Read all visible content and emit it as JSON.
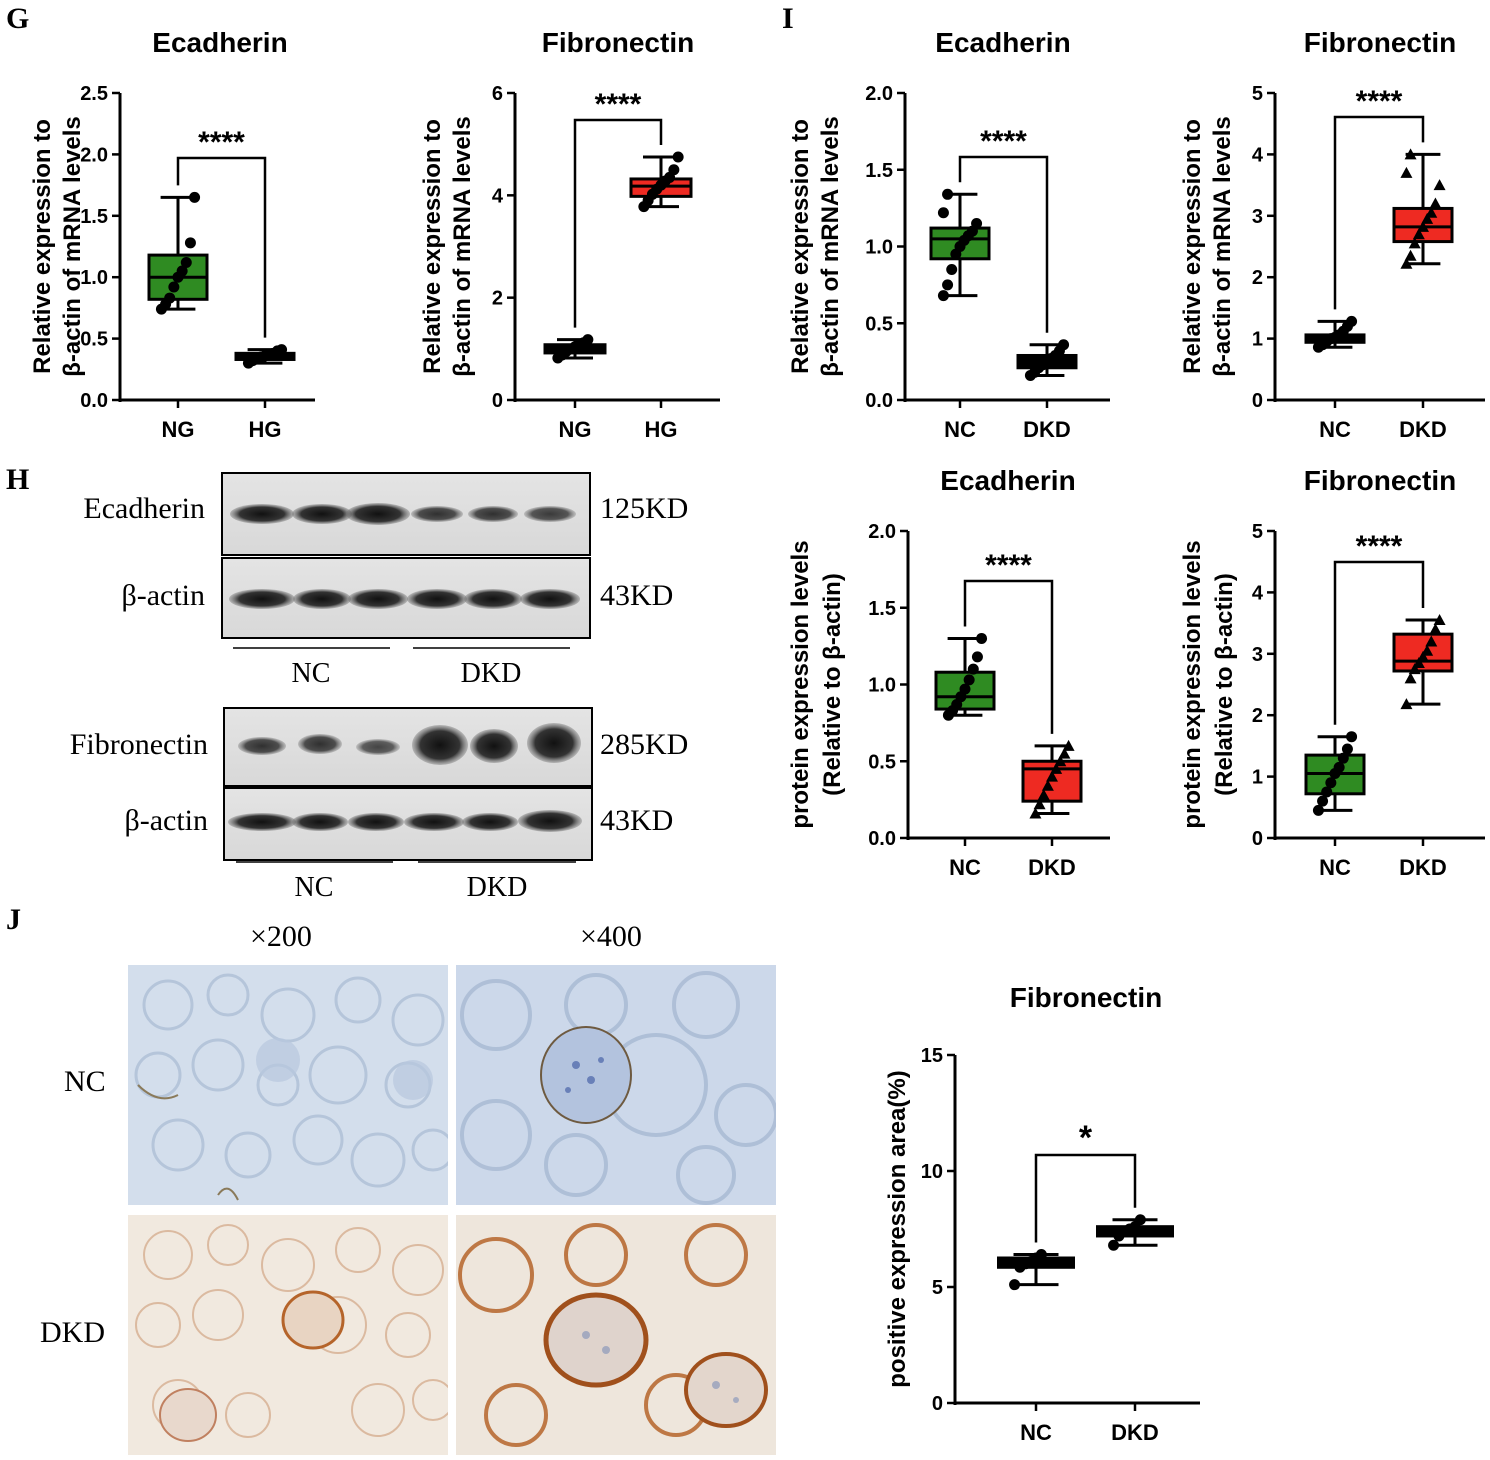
{
  "panels": {
    "G": "G",
    "H": "H",
    "I": "I",
    "J": "J"
  },
  "blot": {
    "top": {
      "row1": "Ecadherin",
      "kd1": "125KD",
      "row2": "β-actin",
      "kd2": "43KD",
      "group_left": "NC",
      "group_right": "DKD"
    },
    "bottom": {
      "row1": "Fibronectin",
      "kd1": "285KD",
      "row2": "β-actin",
      "kd2": "43KD",
      "group_left": "NC",
      "group_right": "DKD"
    }
  },
  "ihc": {
    "col1": "×200",
    "col2": "×400",
    "row1": "NC",
    "row2": "DKD"
  },
  "colors": {
    "green": "#2f8b22",
    "red": "#ee2a22",
    "black": "#000000",
    "ihc_nc_bg": "#cfdbea",
    "ihc_dkd_bg": "#f1e8dc",
    "ihc_stain": "#b5642a"
  },
  "chart_data": [
    {
      "type": "box",
      "title": "Ecadherin",
      "ylabel": [
        "Relative expression to",
        "β-actin of mRNA levels"
      ],
      "categories": [
        "NG",
        "HG"
      ],
      "ylim": [
        0,
        2.5
      ],
      "yticks": [
        "0.0",
        "0.5",
        "1.0",
        "1.5",
        "2.0",
        "2.5"
      ],
      "tick_values": [
        0,
        0.5,
        1,
        1.5,
        2,
        2.5
      ],
      "significance": "****",
      "fills": [
        "#2f8b22",
        "#000000"
      ],
      "boxes": [
        {
          "min": 0.74,
          "q1": 0.82,
          "median": 1.0,
          "q3": 1.18,
          "max": 1.65
        },
        {
          "min": 0.3,
          "q1": 0.33,
          "median": 0.36,
          "q3": 0.38,
          "max": 0.41
        }
      ],
      "points": [
        [
          0.74,
          0.78,
          0.83,
          0.92,
          1.0,
          1.05,
          1.12,
          1.28,
          1.65
        ],
        [
          0.3,
          0.32,
          0.34,
          0.35,
          0.36,
          0.37,
          0.38,
          0.4,
          0.41
        ]
      ]
    },
    {
      "type": "box",
      "title": "Fibronectin",
      "ylabel": [
        "Relative expression to",
        "β-actin of mRNA levels"
      ],
      "categories": [
        "NG",
        "HG"
      ],
      "ylim": [
        0,
        6
      ],
      "yticks": [
        "0",
        "2",
        "4",
        "6"
      ],
      "tick_values": [
        0,
        2,
        4,
        6
      ],
      "significance": "****",
      "fills": [
        "#000000",
        "#ee2a22"
      ],
      "boxes": [
        {
          "min": 0.82,
          "q1": 0.92,
          "median": 1.0,
          "q3": 1.08,
          "max": 1.18
        },
        {
          "min": 3.78,
          "q1": 3.98,
          "median": 4.18,
          "q3": 4.32,
          "max": 4.75
        }
      ],
      "points": [
        [
          0.82,
          0.88,
          0.95,
          1.0,
          1.04,
          1.08,
          1.12,
          1.18
        ],
        [
          3.78,
          3.9,
          4.02,
          4.12,
          4.2,
          4.28,
          4.35,
          4.5,
          4.75
        ]
      ]
    },
    {
      "type": "box",
      "title": "Ecadherin",
      "ylabel": [
        "Relative expression to",
        "β-actin of mRNA levels"
      ],
      "categories": [
        "NC",
        "DKD"
      ],
      "ylim": [
        0,
        2.0
      ],
      "yticks": [
        "0.0",
        "0.5",
        "1.0",
        "1.5",
        "2.0"
      ],
      "tick_values": [
        0,
        0.5,
        1,
        1.5,
        2
      ],
      "significance": "****",
      "fills": [
        "#2f8b22",
        "#000000"
      ],
      "boxes": [
        {
          "min": 0.68,
          "q1": 0.92,
          "median": 1.05,
          "q3": 1.12,
          "max": 1.34
        },
        {
          "min": 0.16,
          "q1": 0.21,
          "median": 0.25,
          "q3": 0.29,
          "max": 0.36
        }
      ],
      "points": [
        [
          0.68,
          0.75,
          0.85,
          0.95,
          1.0,
          1.04,
          1.07,
          1.1,
          1.15,
          1.22,
          1.34
        ],
        [
          0.16,
          0.18,
          0.21,
          0.23,
          0.25,
          0.27,
          0.29,
          0.32,
          0.36
        ]
      ]
    },
    {
      "type": "box",
      "title": "Fibronectin",
      "ylabel": [
        "Relative expression to",
        "β-actin of mRNA levels"
      ],
      "categories": [
        "NC",
        "DKD"
      ],
      "ylim": [
        0,
        5
      ],
      "yticks": [
        "0",
        "1",
        "2",
        "3",
        "4",
        "5"
      ],
      "tick_values": [
        0,
        1,
        2,
        3,
        4,
        5
      ],
      "significance": "****",
      "fills": [
        "#000000",
        "#ee2a22"
      ],
      "boxes": [
        {
          "min": 0.86,
          "q1": 0.94,
          "median": 1.0,
          "q3": 1.06,
          "max": 1.28
        },
        {
          "min": 2.22,
          "q1": 2.58,
          "median": 2.82,
          "q3": 3.12,
          "max": 4.0
        }
      ],
      "points": [
        [
          0.86,
          0.9,
          0.95,
          1.0,
          1.02,
          1.06,
          1.12,
          1.2,
          1.28
        ],
        [
          2.22,
          2.35,
          2.55,
          2.7,
          2.82,
          2.95,
          3.05,
          3.2,
          3.5,
          3.7,
          4.0
        ]
      ]
    },
    {
      "type": "box",
      "title": "Ecadherin",
      "ylabel": [
        "protein expression levels",
        "(Relative to β-actin)"
      ],
      "categories": [
        "NC",
        "DKD"
      ],
      "ylim": [
        0,
        2.0
      ],
      "yticks": [
        "0.0",
        "0.5",
        "1.0",
        "1.5",
        "2.0"
      ],
      "tick_values": [
        0,
        0.5,
        1,
        1.5,
        2
      ],
      "significance": "****",
      "fills": [
        "#2f8b22",
        "#ee2a22"
      ],
      "boxes": [
        {
          "min": 0.8,
          "q1": 0.84,
          "median": 0.92,
          "q3": 1.08,
          "max": 1.3
        },
        {
          "min": 0.16,
          "q1": 0.24,
          "median": 0.45,
          "q3": 0.5,
          "max": 0.6
        }
      ],
      "points": [
        [
          0.8,
          0.83,
          0.87,
          0.92,
          0.97,
          1.03,
          1.1,
          1.18,
          1.3
        ],
        [
          0.16,
          0.22,
          0.28,
          0.34,
          0.4,
          0.45,
          0.5,
          0.55,
          0.6
        ]
      ]
    },
    {
      "type": "box",
      "title": "Fibronectin",
      "ylabel": [
        "protein expression levels",
        "(Relative to β-actin)"
      ],
      "categories": [
        "NC",
        "DKD"
      ],
      "ylim": [
        0,
        5
      ],
      "yticks": [
        "0",
        "1",
        "2",
        "3",
        "4",
        "5"
      ],
      "tick_values": [
        0,
        1,
        2,
        3,
        4,
        5
      ],
      "significance": "****",
      "fills": [
        "#2f8b22",
        "#ee2a22"
      ],
      "boxes": [
        {
          "min": 0.45,
          "q1": 0.72,
          "median": 1.05,
          "q3": 1.35,
          "max": 1.65
        },
        {
          "min": 2.18,
          "q1": 2.72,
          "median": 2.88,
          "q3": 3.32,
          "max": 3.55
        }
      ],
      "points": [
        [
          0.45,
          0.6,
          0.75,
          0.9,
          1.05,
          1.15,
          1.3,
          1.45,
          1.65
        ],
        [
          2.18,
          2.6,
          2.75,
          2.85,
          2.95,
          3.05,
          3.2,
          3.4,
          3.55
        ]
      ]
    },
    {
      "type": "box",
      "title": "Fibronectin",
      "ylabel": [
        "positive expression area(%)"
      ],
      "categories": [
        "NC",
        "DKD"
      ],
      "ylim": [
        0,
        15
      ],
      "yticks": [
        "0",
        "5",
        "10",
        "15"
      ],
      "tick_values": [
        0,
        5,
        10,
        15
      ],
      "significance": "*",
      "fills": [
        "#000000",
        "#000000"
      ],
      "boxes": [
        {
          "min": 5.1,
          "q1": 5.85,
          "median": 6.05,
          "q3": 6.25,
          "max": 6.4
        },
        {
          "min": 6.8,
          "q1": 7.2,
          "median": 7.45,
          "q3": 7.6,
          "max": 7.9
        }
      ],
      "points": [
        [
          5.1,
          5.85,
          6.0,
          6.1,
          6.25,
          6.4
        ],
        [
          6.8,
          7.2,
          7.4,
          7.5,
          7.6,
          7.9
        ]
      ]
    }
  ]
}
